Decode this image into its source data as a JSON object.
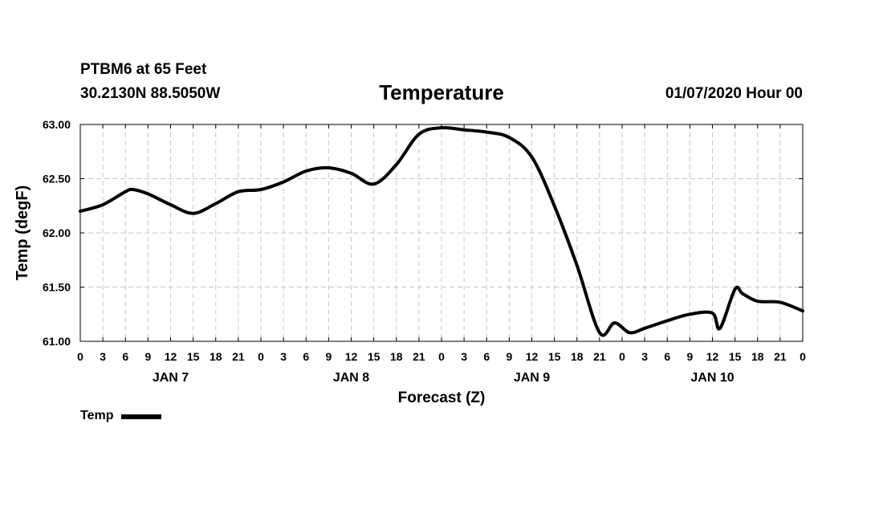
{
  "header": {
    "station": "PTBM6 at 65 Feet",
    "coords": "30.2130N 88.5050W",
    "title": "Temperature",
    "run": "01/07/2020 Hour 00"
  },
  "chart_data": {
    "type": "line",
    "title": "Temperature",
    "xlabel": "Forecast (Z)",
    "ylabel": "Temp (degF)",
    "x_unit": "hours since 01/07/2020 00Z",
    "xlim": [
      0,
      96
    ],
    "ylim": [
      61.0,
      63.0
    ],
    "yticks": [
      "61.00",
      "61.50",
      "62.00",
      "62.50",
      "63.00"
    ],
    "xtick_labels": [
      "0",
      "3",
      "6",
      "9",
      "12",
      "15",
      "18",
      "21",
      "0",
      "3",
      "6",
      "9",
      "12",
      "15",
      "18",
      "21",
      "0",
      "3",
      "6",
      "9",
      "12",
      "15",
      "18",
      "21",
      "0",
      "3",
      "6",
      "9",
      "12",
      "15",
      "18",
      "21",
      "0"
    ],
    "day_labels": [
      {
        "label": "JAN 7",
        "hour": 12
      },
      {
        "label": "JAN 8",
        "hour": 36
      },
      {
        "label": "JAN 9",
        "hour": 60
      },
      {
        "label": "JAN 10",
        "hour": 84
      }
    ],
    "grid": true,
    "legend_position": "bottom-left",
    "series": [
      {
        "name": "Temp",
        "color": "#000000",
        "x": [
          0,
          3,
          6,
          7,
          9,
          12,
          15,
          18,
          21,
          24,
          27,
          30,
          33,
          36,
          39,
          42,
          45,
          48,
          51,
          54,
          57,
          60,
          63,
          66,
          69,
          71,
          73,
          75,
          78,
          81,
          84,
          85,
          87,
          88,
          90,
          93,
          96
        ],
        "y": [
          62.2,
          62.26,
          62.38,
          62.4,
          62.36,
          62.26,
          62.18,
          62.27,
          62.38,
          62.4,
          62.47,
          62.57,
          62.6,
          62.55,
          62.45,
          62.63,
          62.91,
          62.97,
          62.95,
          62.93,
          62.88,
          62.7,
          62.25,
          61.7,
          61.08,
          61.17,
          61.08,
          61.12,
          61.19,
          61.25,
          61.26,
          61.12,
          61.48,
          61.44,
          61.37,
          61.36,
          61.28
        ]
      }
    ]
  },
  "legend": {
    "label": "Temp"
  }
}
